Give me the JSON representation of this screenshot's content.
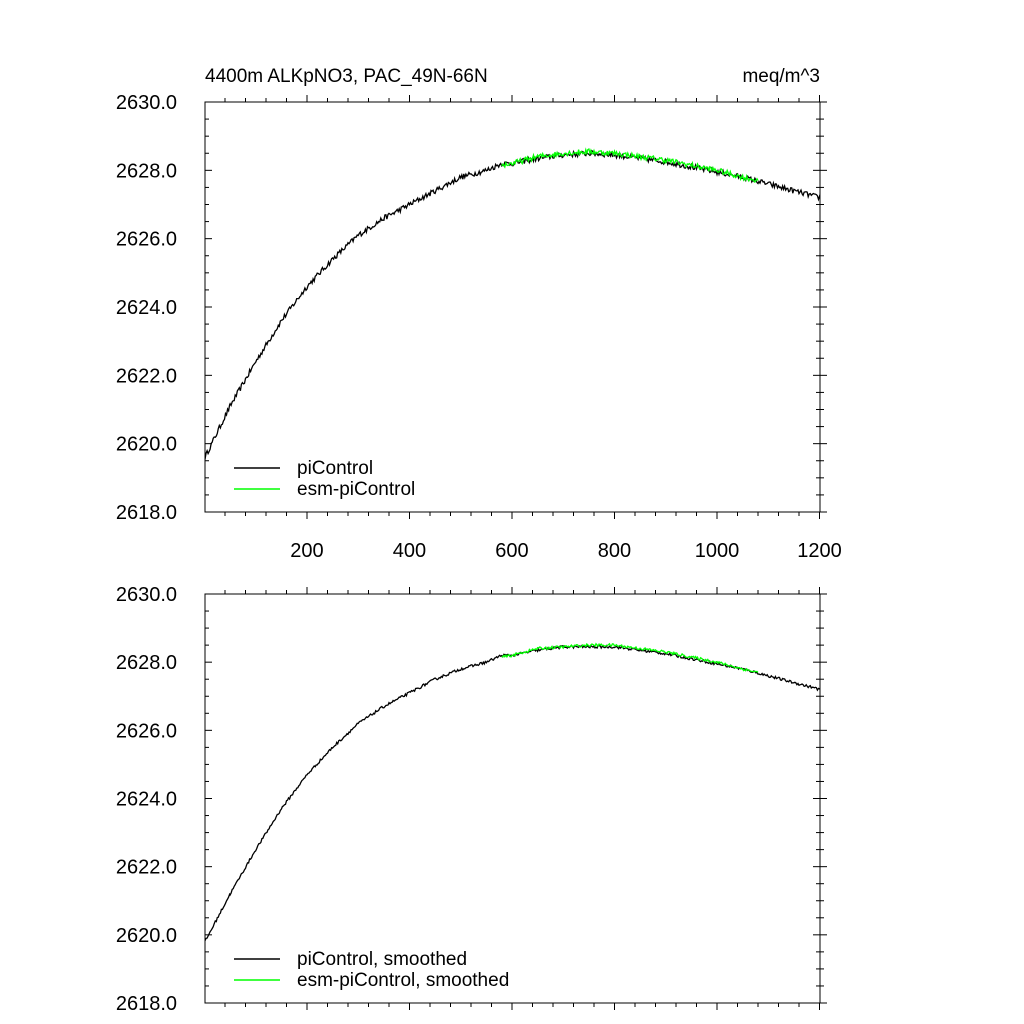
{
  "figure": {
    "title_left": "4400m ALKpNO3, PAC_49N-66N",
    "title_right": "meq/m^3"
  },
  "chart_data": [
    {
      "type": "line",
      "title": "4400m ALKpNO3, PAC_49N-66N",
      "units": "meq/m^3",
      "xlabel": "",
      "ylabel": "",
      "xlim": [
        1,
        1201
      ],
      "ylim": [
        2618.0,
        2630.0
      ],
      "x_ticks": [
        200,
        400,
        600,
        800,
        1000,
        1200
      ],
      "x_tick_labels": [
        "200",
        "400",
        "600",
        "800",
        "1000",
        "1200"
      ],
      "y_ticks": [
        2618.0,
        2620.0,
        2622.0,
        2624.0,
        2626.0,
        2628.0,
        2630.0
      ],
      "y_tick_labels": [
        "2618.0",
        "2620.0",
        "2622.0",
        "2624.0",
        "2626.0",
        "2628.0",
        "2630.0"
      ],
      "legend_position": "bottom-left",
      "series": [
        {
          "name": "piControl",
          "color": "#000000",
          "x": [
            1,
            50,
            100,
            150,
            200,
            250,
            300,
            350,
            400,
            450,
            500,
            550,
            580,
            600,
            650,
            700,
            750,
            800,
            850,
            900,
            950,
            1000,
            1050,
            1100,
            1150,
            1201
          ],
          "values": [
            2619.6,
            2621.1,
            2622.4,
            2623.6,
            2624.6,
            2625.4,
            2626.1,
            2626.6,
            2627.0,
            2627.4,
            2627.8,
            2628.0,
            2628.2,
            2628.2,
            2628.35,
            2628.45,
            2628.5,
            2628.45,
            2628.35,
            2628.25,
            2628.1,
            2627.95,
            2627.8,
            2627.6,
            2627.4,
            2627.2
          ]
        },
        {
          "name": "esm-piControl",
          "color": "#00ff00",
          "x": [
            580,
            600,
            650,
            700,
            750,
            800,
            850,
            900,
            950,
            1000,
            1050,
            1080
          ],
          "values": [
            2628.15,
            2628.2,
            2628.4,
            2628.5,
            2628.55,
            2628.5,
            2628.4,
            2628.3,
            2628.15,
            2628.0,
            2627.8,
            2627.7
          ]
        }
      ]
    },
    {
      "type": "line",
      "title": "",
      "xlabel": "",
      "ylabel": "",
      "xlim": [
        1,
        1201
      ],
      "ylim": [
        2618.0,
        2630.0
      ],
      "x_ticks": [
        200,
        400,
        600,
        800,
        1000,
        1200
      ],
      "x_tick_labels": [],
      "y_ticks": [
        2618.0,
        2620.0,
        2622.0,
        2624.0,
        2626.0,
        2628.0,
        2630.0
      ],
      "y_tick_labels": [
        "2618.0",
        "2620.0",
        "2622.0",
        "2624.0",
        "2626.0",
        "2628.0",
        "2630.0"
      ],
      "legend_position": "bottom-left",
      "series": [
        {
          "name": "piControl, smoothed",
          "color": "#000000",
          "x": [
            1,
            50,
            100,
            150,
            200,
            250,
            300,
            350,
            400,
            450,
            500,
            550,
            580,
            600,
            650,
            700,
            750,
            800,
            850,
            900,
            950,
            1000,
            1050,
            1100,
            1150,
            1201
          ],
          "values": [
            2619.8,
            2621.2,
            2622.5,
            2623.7,
            2624.7,
            2625.5,
            2626.2,
            2626.7,
            2627.1,
            2627.5,
            2627.8,
            2628.0,
            2628.2,
            2628.2,
            2628.35,
            2628.45,
            2628.45,
            2628.45,
            2628.35,
            2628.25,
            2628.1,
            2627.95,
            2627.8,
            2627.6,
            2627.4,
            2627.2
          ]
        },
        {
          "name": "esm-piControl, smoothed",
          "color": "#00ff00",
          "x": [
            580,
            600,
            650,
            700,
            750,
            800,
            850,
            900,
            950,
            1000,
            1050,
            1080
          ],
          "values": [
            2628.15,
            2628.2,
            2628.4,
            2628.45,
            2628.5,
            2628.5,
            2628.4,
            2628.3,
            2628.15,
            2628.0,
            2627.8,
            2627.7
          ]
        }
      ]
    }
  ]
}
